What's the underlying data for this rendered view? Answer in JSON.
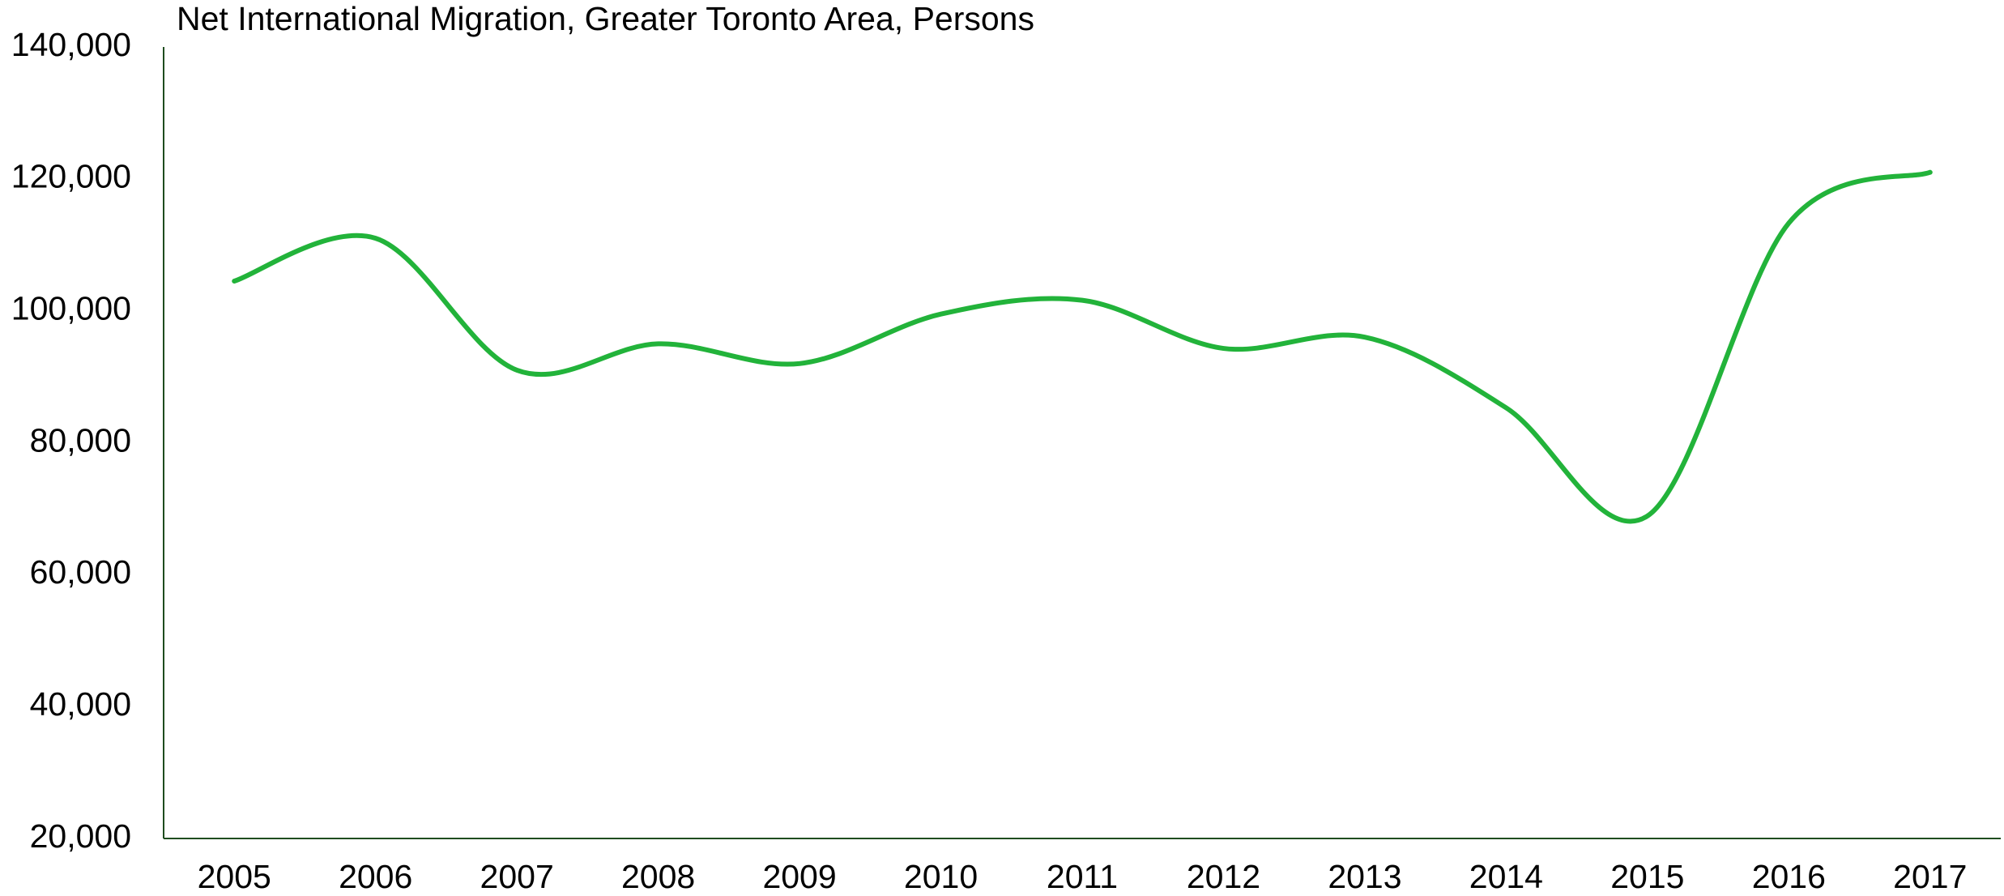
{
  "chart_data": {
    "type": "line",
    "title": "Net International Migration, Greater Toronto Area, Persons",
    "categories": [
      "2005",
      "2006",
      "2007",
      "2008",
      "2009",
      "2010",
      "2011",
      "2012",
      "2013",
      "2014",
      "2015",
      "2016",
      "2017"
    ],
    "series": [
      {
        "name": "Net International Migration",
        "color": "#22b33a",
        "values": [
          104500,
          111000,
          91000,
          95000,
          92000,
          99500,
          101600,
          94300,
          96000,
          85300,
          68900,
          113300,
          121000
        ]
      }
    ],
    "ylim": [
      20000,
      140000
    ],
    "yticks": [
      {
        "value": 20000,
        "label": "20,000"
      },
      {
        "value": 40000,
        "label": "40,000"
      },
      {
        "value": 60000,
        "label": "60,000"
      },
      {
        "value": 80000,
        "label": "80,000"
      },
      {
        "value": 100000,
        "label": "100,000"
      },
      {
        "value": 120000,
        "label": "120,000"
      },
      {
        "value": 140000,
        "label": "140,000"
      }
    ],
    "smooth": true,
    "grid": false
  }
}
